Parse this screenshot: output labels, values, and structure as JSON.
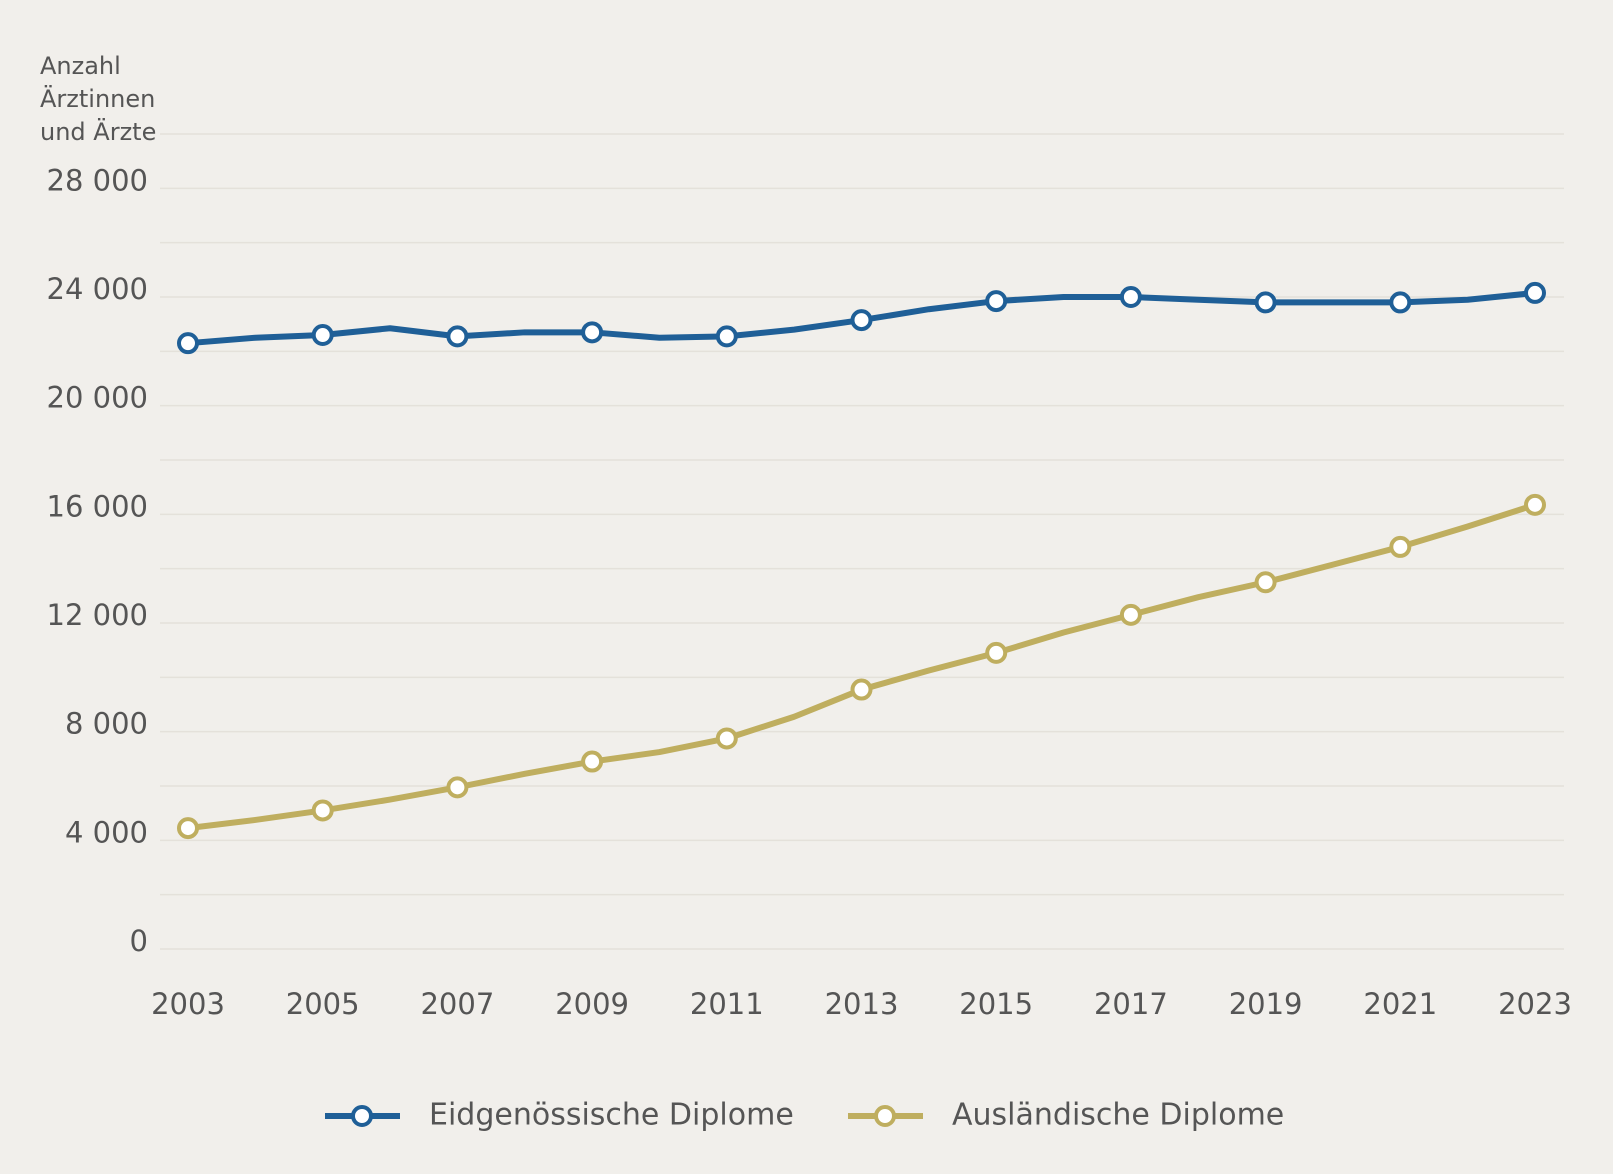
{
  "chart_data": {
    "type": "line",
    "ylabel": [
      "Anzahl",
      "Ärztinnen",
      "und Ärzte"
    ],
    "x": [
      2003,
      2004,
      2005,
      2006,
      2007,
      2008,
      2009,
      2010,
      2011,
      2012,
      2013,
      2014,
      2015,
      2016,
      2017,
      2018,
      2019,
      2020,
      2021,
      2022,
      2023
    ],
    "xlim": [
      2003,
      2023
    ],
    "xticks": [
      2003,
      2005,
      2007,
      2009,
      2011,
      2013,
      2015,
      2017,
      2019,
      2021,
      2023
    ],
    "ylim": [
      0,
      30000
    ],
    "yticks": [
      0,
      {
        "value": 4000,
        "label": "4 000"
      },
      {
        "value": 8000,
        "label": "8 000"
      },
      {
        "value": 12000,
        "label": "12 000"
      },
      {
        "value": 16000,
        "label": "16 000"
      },
      {
        "value": 20000,
        "label": "20 000"
      },
      {
        "value": 24000,
        "label": "24 000"
      },
      {
        "value": 28000,
        "label": "28 000"
      }
    ],
    "minor_grid": [
      2000,
      6000,
      10000,
      14000,
      18000,
      22000,
      26000,
      30000
    ],
    "grid": true,
    "series": [
      {
        "name": "Eidgenössische Diplome",
        "color": "#1f5f97",
        "values": [
          22300,
          22500,
          22600,
          22850,
          22550,
          22700,
          22700,
          22500,
          22550,
          22800,
          23150,
          23550,
          23850,
          24000,
          24000,
          23900,
          23800,
          23800,
          23800,
          23900,
          24150
        ]
      },
      {
        "name": "Ausländische Diplome",
        "color": "#bfae5f",
        "values": [
          4450,
          4750,
          5100,
          5500,
          5950,
          6450,
          6900,
          7250,
          7750,
          8550,
          9550,
          10250,
          10900,
          11650,
          12300,
          12950,
          13500,
          14150,
          14800,
          15550,
          16350
        ]
      }
    ]
  }
}
